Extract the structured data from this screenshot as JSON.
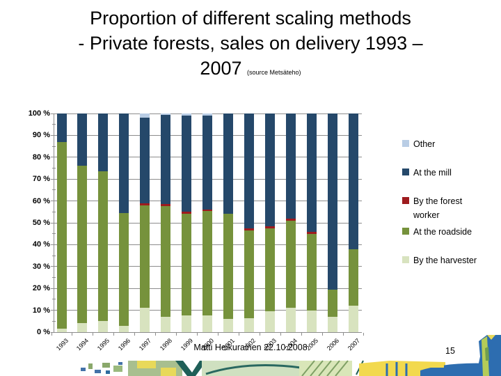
{
  "slide": {
    "title_lines": [
      "Proportion of different scaling methods",
      "- Private forests, sales on delivery 1993 –",
      "2007"
    ],
    "title_source": "(source Metsäteho)",
    "footer_text": "Matti Heikurainen 22.10.2008",
    "page_number": "15"
  },
  "chart_data": {
    "type": "bar",
    "subtype": "stacked-100-percent",
    "title": "",
    "xlabel": "",
    "ylabel": "",
    "ylim": [
      0,
      100
    ],
    "grid": true,
    "legend_position": "right",
    "categories": [
      "1993",
      "1994",
      "1995",
      "1996",
      "1997",
      "1998",
      "1999",
      "2000",
      "2001",
      "2002",
      "2003",
      "2004",
      "2005",
      "2006",
      "2007"
    ],
    "ytick_labels": [
      "0 %",
      "10 %",
      "20 %",
      "30 %",
      "40 %",
      "50 %",
      "60 %",
      "70 %",
      "80 %",
      "90 %",
      "100 %"
    ],
    "series": [
      {
        "name": "By the harvester",
        "color": "#D8E3BF",
        "values": [
          1.5,
          4,
          5,
          3,
          11,
          7,
          7.5,
          7.5,
          6,
          6.5,
          9.5,
          11,
          10,
          7,
          12
        ]
      },
      {
        "name": "At the roadside",
        "color": "#76923C",
        "values": [
          85.5,
          72,
          68.5,
          51.5,
          47,
          50.5,
          46.5,
          48,
          48,
          40,
          38,
          40,
          35,
          12.5,
          26
        ]
      },
      {
        "name": "By the forest worker",
        "color": "#9E1B1E",
        "values": [
          0,
          0,
          0,
          0,
          1,
          1,
          1,
          0.5,
          0,
          1,
          1,
          1,
          1,
          0,
          0
        ]
      },
      {
        "name": "At the mill",
        "color": "#25486A",
        "values": [
          13,
          24,
          26.5,
          45.5,
          39,
          41,
          44,
          43,
          46,
          52.5,
          51.5,
          48,
          54,
          80.5,
          62
        ]
      },
      {
        "name": "Other",
        "color": "#B9CDE5",
        "values": [
          0,
          0,
          0,
          0,
          2,
          0.5,
          1,
          1,
          0,
          0,
          0,
          0,
          0,
          0,
          0
        ]
      }
    ],
    "legend_order": [
      "Other",
      "At the mill",
      "By the forest worker",
      "At the roadside",
      "By the harvester"
    ]
  }
}
